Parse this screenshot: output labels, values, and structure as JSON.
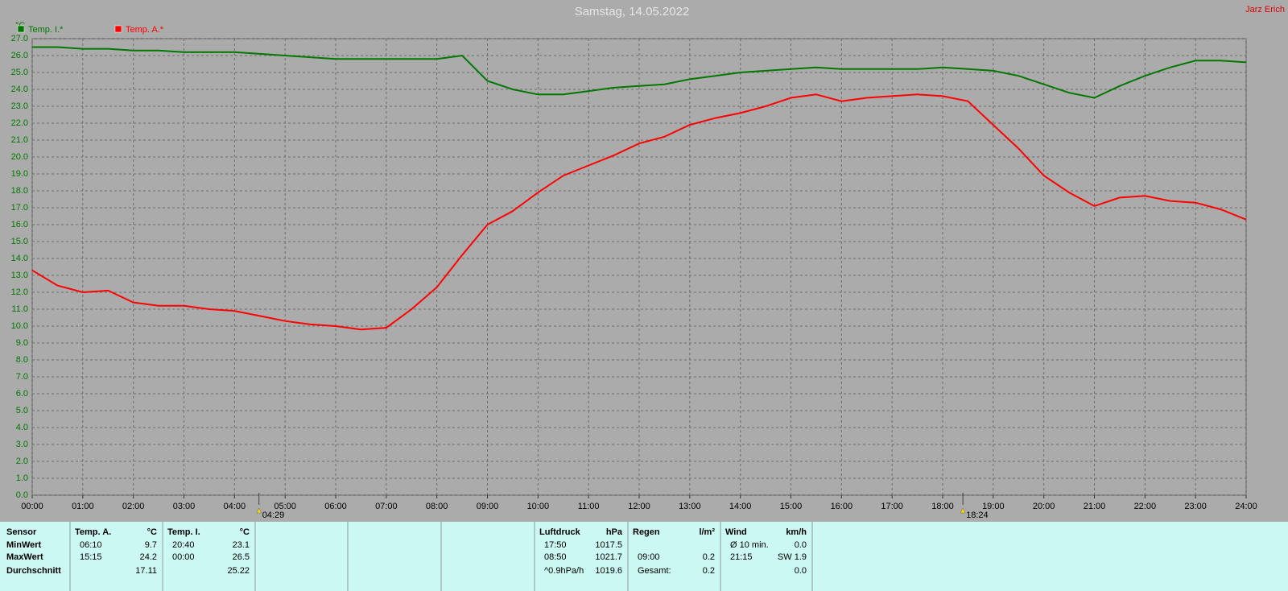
{
  "chart_data": {
    "type": "line",
    "title": "Samstag, 14.05.2022",
    "author": "Jarz Erich",
    "y_unit": "°C",
    "sunrise": "04:29",
    "sunset": "18:24",
    "x": [
      0,
      0.5,
      1,
      1.5,
      2,
      2.5,
      3,
      3.5,
      4,
      4.5,
      5,
      5.5,
      6,
      6.5,
      7,
      7.5,
      8,
      8.5,
      9,
      9.5,
      10,
      10.5,
      11,
      11.5,
      12,
      12.5,
      13,
      13.5,
      14,
      14.5,
      15,
      15.5,
      16,
      16.5,
      17,
      17.5,
      18,
      18.5,
      19,
      19.5,
      20,
      20.5,
      21,
      21.5,
      22,
      22.5,
      23,
      23.5,
      24
    ],
    "series": [
      {
        "name": "Temp. I.*",
        "color": "#007800",
        "values": [
          26.5,
          26.5,
          26.4,
          26.4,
          26.3,
          26.3,
          26.2,
          26.2,
          26.2,
          26.1,
          26.0,
          25.9,
          25.8,
          25.8,
          25.8,
          25.8,
          25.8,
          26.0,
          24.5,
          24.0,
          23.7,
          23.7,
          23.9,
          24.1,
          24.2,
          24.3,
          24.6,
          24.8,
          25.0,
          25.1,
          25.2,
          25.3,
          25.2,
          25.2,
          25.2,
          25.2,
          25.3,
          25.2,
          25.1,
          24.8,
          24.3,
          23.8,
          23.5,
          24.2,
          24.8,
          25.3,
          25.7,
          25.7,
          25.6
        ]
      },
      {
        "name": "Temp. A.*",
        "color": "#ff0000",
        "values": [
          13.3,
          12.4,
          12.0,
          12.1,
          11.4,
          11.2,
          11.2,
          11.0,
          10.9,
          10.6,
          10.3,
          10.1,
          10.0,
          9.8,
          9.9,
          11.0,
          12.3,
          14.2,
          16.0,
          16.8,
          17.9,
          18.9,
          19.5,
          20.1,
          20.8,
          21.2,
          21.9,
          22.3,
          22.6,
          23.0,
          23.5,
          23.7,
          23.3,
          23.5,
          23.6,
          23.7,
          23.6,
          23.3,
          21.9,
          20.5,
          18.9,
          17.9,
          17.1,
          17.6,
          17.7,
          17.4,
          17.3,
          16.9,
          16.3
        ]
      }
    ],
    "xlim": [
      0,
      24
    ],
    "xticks": [
      {
        "value": 0,
        "label": "00:00"
      },
      {
        "value": 1,
        "label": "01:00"
      },
      {
        "value": 2,
        "label": "02:00"
      },
      {
        "value": 3,
        "label": "03:00"
      },
      {
        "value": 4,
        "label": "04:00"
      },
      {
        "value": 5,
        "label": "05:00"
      },
      {
        "value": 6,
        "label": "06:00"
      },
      {
        "value": 7,
        "label": "07:00"
      },
      {
        "value": 8,
        "label": "08:00"
      },
      {
        "value": 9,
        "label": "09:00"
      },
      {
        "value": 10,
        "label": "10:00"
      },
      {
        "value": 11,
        "label": "11:00"
      },
      {
        "value": 12,
        "label": "12:00"
      },
      {
        "value": 13,
        "label": "13:00"
      },
      {
        "value": 14,
        "label": "14:00"
      },
      {
        "value": 15,
        "label": "15:00"
      },
      {
        "value": 16,
        "label": "16:00"
      },
      {
        "value": 17,
        "label": "17:00"
      },
      {
        "value": 18,
        "label": "18:00"
      },
      {
        "value": 19,
        "label": "19:00"
      },
      {
        "value": 20,
        "label": "20:00"
      },
      {
        "value": 21,
        "label": "21:00"
      },
      {
        "value": 22,
        "label": "22:00"
      },
      {
        "value": 23,
        "label": "23:00"
      },
      {
        "value": 24,
        "label": "24:00"
      }
    ],
    "ylim": [
      0,
      27
    ],
    "yticks": [
      {
        "value": 0,
        "label": "0.0"
      },
      {
        "value": 1,
        "label": "1.0"
      },
      {
        "value": 2,
        "label": "2.0"
      },
      {
        "value": 3,
        "label": "3.0"
      },
      {
        "value": 4,
        "label": "4.0"
      },
      {
        "value": 5,
        "label": "5.0"
      },
      {
        "value": 6,
        "label": "6.0"
      },
      {
        "value": 7,
        "label": "7.0"
      },
      {
        "value": 8,
        "label": "8.0"
      },
      {
        "value": 9,
        "label": "9.0"
      },
      {
        "value": 10,
        "label": "10.0"
      },
      {
        "value": 11,
        "label": "11.0"
      },
      {
        "value": 12,
        "label": "12.0"
      },
      {
        "value": 13,
        "label": "13.0"
      },
      {
        "value": 14,
        "label": "14.0"
      },
      {
        "value": 15,
        "label": "15.0"
      },
      {
        "value": 16,
        "label": "16.0"
      },
      {
        "value": 17,
        "label": "17.0"
      },
      {
        "value": 18,
        "label": "18.0"
      },
      {
        "value": 19,
        "label": "19.0"
      },
      {
        "value": 20,
        "label": "20.0"
      },
      {
        "value": 21,
        "label": "21.0"
      },
      {
        "value": 22,
        "label": "22.0"
      },
      {
        "value": 23,
        "label": "23.0"
      },
      {
        "value": 24,
        "label": "24.0"
      },
      {
        "value": 25,
        "label": "25.0"
      },
      {
        "value": 26,
        "label": "26.0"
      },
      {
        "value": 27,
        "label": "27.0"
      }
    ],
    "grid": true
  },
  "summary": {
    "row_labels": [
      "Sensor",
      "MinWert",
      "MaxWert",
      "Durchschnitt"
    ],
    "groups": [
      {
        "header": "Temp. A.",
        "unit": "°C",
        "rows": [
          {
            "time": "06:10",
            "value": "9.7"
          },
          {
            "time": "15:15",
            "value": "24.2"
          },
          {
            "value": "17.11"
          }
        ]
      },
      {
        "header": "Temp. I.",
        "unit": "°C",
        "rows": [
          {
            "time": "20:40",
            "value": "23.1"
          },
          {
            "time": "00:00",
            "value": "26.5"
          },
          {
            "value": "25.22"
          }
        ]
      },
      {
        "header": "Luftdruck",
        "unit": "hPa",
        "rows": [
          {
            "time": "17:50",
            "value": "1017.5"
          },
          {
            "time": "08:50",
            "value": "1021.7"
          },
          {
            "time": "^0.9hPa/h",
            "value": "1019.6"
          }
        ]
      },
      {
        "header": "Regen",
        "unit": "l/m²",
        "rows": [
          {},
          {
            "time": "09:00",
            "value": "0.2"
          },
          {
            "time": "Gesamt:",
            "value": "0.2"
          }
        ]
      },
      {
        "header": "Wind",
        "unit": "km/h",
        "rows": [
          {
            "time": "Ø 10 min.",
            "value": "0.0"
          },
          {
            "time": "21:15",
            "value": "SW 1.9"
          },
          {
            "value": "0.0"
          }
        ]
      }
    ]
  }
}
